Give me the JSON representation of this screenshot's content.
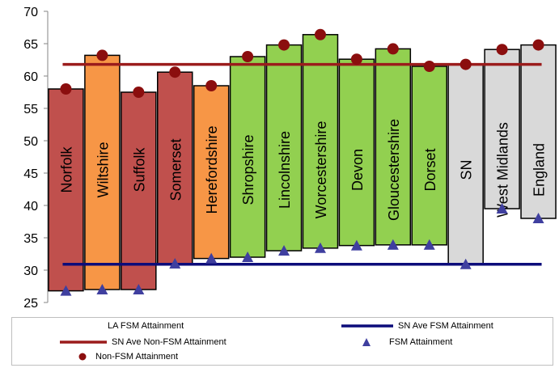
{
  "chart_data": {
    "type": "bar",
    "categories": [
      "Norfolk",
      "Wiltshire",
      "Suffolk",
      "Somerset",
      "Herefordshire",
      "Shropshire",
      "Lincolnshire",
      "Worcestershire",
      "Devon",
      "Gloucestershire",
      "Dorset",
      "SN",
      "West Midlands",
      "England"
    ],
    "bar_colors": [
      "#c0504d",
      "#f79646",
      "#c0504d",
      "#c0504d",
      "#f79646",
      "#92d050",
      "#92d050",
      "#92d050",
      "#92d050",
      "#92d050",
      "#92d050",
      "#d9d9d9",
      "#d9d9d9",
      "#d9d9d9"
    ],
    "series": [
      {
        "name": "LA FSM Attainment",
        "type": "floating-bar",
        "low": [
          26.8,
          27.0,
          27.0,
          31.0,
          31.8,
          32.0,
          33.0,
          33.4,
          33.8,
          33.9,
          33.9,
          30.9,
          39.5,
          38.0
        ],
        "high": [
          58.0,
          63.2,
          57.5,
          60.6,
          58.5,
          63.0,
          64.8,
          66.4,
          62.6,
          64.2,
          61.5,
          61.8,
          64.1,
          64.8
        ]
      },
      {
        "name": "SN Ave FSM Attainment",
        "type": "hline",
        "value": 30.9,
        "color": "#0c0c7a"
      },
      {
        "name": "SN Ave Non-FSM Attainment",
        "type": "hline",
        "value": 61.8,
        "color": "#9b1c1c"
      },
      {
        "name": "FSM Attainment",
        "type": "marker",
        "shape": "triangle",
        "color": "#3f3f9f",
        "values": [
          26.8,
          27.0,
          27.0,
          31.0,
          31.8,
          32.0,
          33.0,
          33.4,
          33.8,
          33.9,
          33.9,
          30.9,
          39.5,
          38.0
        ]
      },
      {
        "name": "Non-FSM Attainment",
        "type": "marker",
        "shape": "circle",
        "color": "#8b0e0e",
        "values": [
          58.0,
          63.2,
          57.5,
          60.6,
          58.5,
          63.0,
          64.8,
          66.4,
          62.6,
          64.2,
          61.5,
          61.8,
          64.1,
          64.8
        ]
      }
    ],
    "ylim": [
      25,
      70
    ],
    "yticks": [
      "25",
      "30",
      "35",
      "40",
      "45",
      "50",
      "55",
      "60",
      "65",
      "70"
    ],
    "title": "",
    "xlabel": "",
    "ylabel": "",
    "legend_position": "bottom",
    "grid": false
  },
  "legend": {
    "items": [
      {
        "key": "la_fsm",
        "label": "LA FSM Attainment"
      },
      {
        "key": "sn_fsm",
        "label": "SN Ave FSM Attainment"
      },
      {
        "key": "sn_nonfsm",
        "label": "SN Ave Non-FSM Attainment"
      },
      {
        "key": "fsm",
        "label": "FSM Attainment"
      },
      {
        "key": "nonfsm",
        "label": "Non-FSM Attainment"
      }
    ]
  }
}
